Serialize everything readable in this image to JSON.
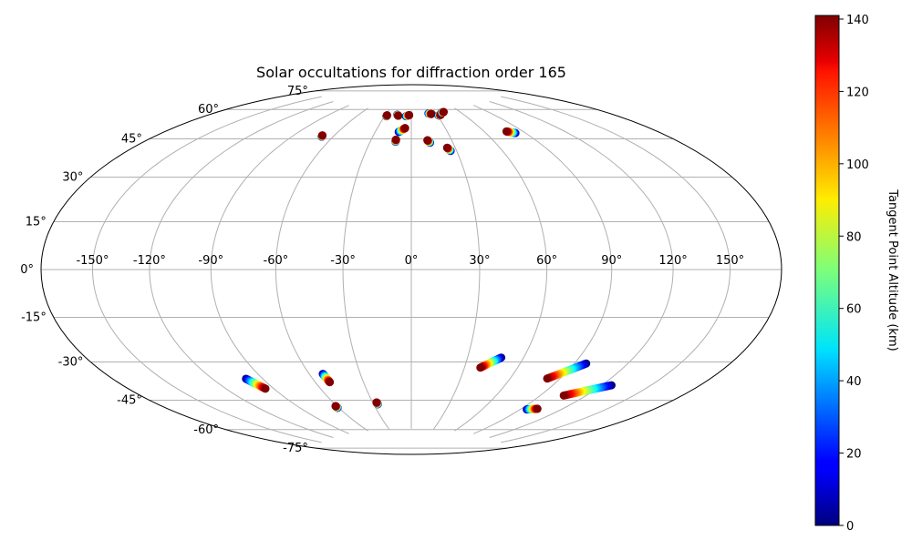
{
  "chart_data": {
    "type": "scatter",
    "projection": "hammer",
    "title": "Solar occultations for diffraction order 165",
    "xlabel": "",
    "ylabel": "",
    "xlim": [
      -180,
      180
    ],
    "ylim": [
      -90,
      90
    ],
    "grid": true,
    "lon_ticks": [
      -150,
      -120,
      -90,
      -60,
      -30,
      0,
      30,
      60,
      90,
      120,
      150
    ],
    "lat_ticks": [
      -75,
      -60,
      -45,
      -30,
      -15,
      0,
      15,
      30,
      45,
      60,
      75
    ],
    "lon_tick_labels": [
      "-150°",
      "-120°",
      "-90°",
      "-60°",
      "-30°",
      "0°",
      "30°",
      "60°",
      "90°",
      "120°",
      "150°"
    ],
    "lat_tick_labels": [
      "-75°",
      "-60°",
      "-45°",
      "-30°",
      "-15°",
      "0°",
      "15°",
      "30°",
      "45°",
      "60°",
      "75°"
    ],
    "colorbar": {
      "label": "Tangent Point Altitude (km)",
      "colormap": "jet",
      "range": [
        0,
        141
      ],
      "ticks": [
        0,
        20,
        40,
        60,
        80,
        100,
        120,
        140
      ],
      "tick_labels": [
        "0",
        "20",
        "40",
        "60",
        "80",
        "100",
        "120",
        "140"
      ]
    },
    "occultations": [
      {
        "start": [
          -68.5,
          59.1
        ],
        "end": [
          -69.0,
          59.7
        ],
        "alt_start": 0,
        "alt_end": 141
      },
      {
        "start": [
          -28.0,
          71.5
        ],
        "end": [
          -28.0,
          72.0
        ],
        "alt_start": 0,
        "alt_end": 141
      },
      {
        "start": [
          -16.5,
          72.5
        ],
        "end": [
          -15.0,
          72.0
        ],
        "alt_start": 0,
        "alt_end": 141
      },
      {
        "start": [
          -11.5,
          58.5
        ],
        "end": [
          -11.5,
          59.5
        ],
        "alt_start": 0,
        "alt_end": 141
      },
      {
        "start": [
          -10.5,
          63.5
        ],
        "end": [
          -5.5,
          65.5
        ],
        "alt_start": 0,
        "alt_end": 141
      },
      {
        "start": [
          -6.0,
          71.8
        ],
        "end": [
          -2.5,
          72.4
        ],
        "alt_start": 0,
        "alt_end": 141
      },
      {
        "start": [
          13.5,
          58.0
        ],
        "end": [
          12.0,
          59.2
        ],
        "alt_start": 0,
        "alt_end": 141
      },
      {
        "start": [
          26.0,
          53.7
        ],
        "end": [
          24.5,
          55.3
        ],
        "alt_start": 0,
        "alt_end": 141
      },
      {
        "start": [
          21.0,
          73.2
        ],
        "end": [
          24.0,
          72.8
        ],
        "alt_start": 0,
        "alt_end": 141
      },
      {
        "start": [
          31.5,
          71.9
        ],
        "end": [
          34.0,
          72.1
        ],
        "alt_start": 0,
        "alt_end": 141
      },
      {
        "start": [
          37.5,
          73.3
        ],
        "end": [
          40.5,
          73.5
        ],
        "alt_start": 0,
        "alt_end": 141
      },
      {
        "start": [
          82.5,
          60.0
        ],
        "end": [
          77.5,
          61.2
        ],
        "alt_start": 0,
        "alt_end": 141
      },
      {
        "start": [
          -100.0,
          -45.4
        ],
        "end": [
          -95.3,
          -50.4
        ],
        "alt_start": 0,
        "alt_end": 141
      },
      {
        "start": [
          -52.0,
          -46.0
        ],
        "end": [
          -51.0,
          -50.0
        ],
        "alt_start": 0,
        "alt_end": 141
      },
      {
        "start": [
          -61.0,
          -62.3
        ],
        "end": [
          -61.0,
          -61.4
        ],
        "alt_start": 0,
        "alt_end": 141
      },
      {
        "start": [
          -26.7,
          -61.7
        ],
        "end": [
          -27.0,
          -60.8
        ],
        "alt_start": 0,
        "alt_end": 141
      },
      {
        "start": [
          48.0,
          -38.6
        ],
        "end": [
          39.0,
          -43.5
        ],
        "alt_start": 0,
        "alt_end": 141
      },
      {
        "start": [
          96.6,
          -38.8
        ],
        "end": [
          82.3,
          -46.6
        ],
        "alt_start": 0,
        "alt_end": 141
      },
      {
        "start": [
          126.0,
          -45.9
        ],
        "end": [
          105.5,
          -52.8
        ],
        "alt_start": 0,
        "alt_end": 141
      },
      {
        "start": [
          95.0,
          -60.8
        ],
        "end": [
          102.0,
          -59.8
        ],
        "alt_start": 0,
        "alt_end": 141
      }
    ]
  }
}
